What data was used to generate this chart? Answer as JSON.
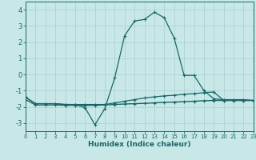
{
  "xlabel": "Humidex (Indice chaleur)",
  "background_color": "#c8e8e8",
  "line_color": "#1a6666",
  "grid_color": "#a8cccc",
  "xlim": [
    0,
    23
  ],
  "ylim": [
    -3.5,
    4.5
  ],
  "xticks": [
    0,
    1,
    2,
    3,
    4,
    5,
    6,
    7,
    8,
    9,
    10,
    11,
    12,
    13,
    14,
    15,
    16,
    17,
    18,
    19,
    20,
    21,
    22,
    23
  ],
  "yticks": [
    -3,
    -2,
    -1,
    0,
    1,
    2,
    3,
    4
  ],
  "line_main_x": [
    0,
    1,
    2,
    3,
    4,
    5,
    6,
    7,
    8,
    9,
    10,
    11,
    12,
    13,
    14,
    15,
    16,
    17,
    18,
    19,
    20,
    21,
    22,
    23
  ],
  "line_main_y": [
    -1.4,
    -1.8,
    -1.8,
    -1.8,
    -1.85,
    -1.85,
    -2.05,
    -3.1,
    -2.1,
    -0.2,
    2.4,
    3.3,
    3.4,
    3.85,
    3.5,
    2.25,
    -0.05,
    -0.05,
    -1.0,
    -1.5,
    -1.55,
    -1.55,
    -1.55,
    -1.6
  ],
  "line_upper_x": [
    0,
    1,
    2,
    3,
    4,
    5,
    6,
    7,
    8,
    9,
    10,
    11,
    12,
    13,
    14,
    15,
    16,
    17,
    18,
    19,
    20,
    21,
    22,
    23
  ],
  "line_upper_y": [
    -1.4,
    -1.8,
    -1.8,
    -1.8,
    -1.85,
    -1.85,
    -1.85,
    -1.85,
    -1.85,
    -1.75,
    -1.65,
    -1.55,
    -1.45,
    -1.38,
    -1.32,
    -1.28,
    -1.22,
    -1.18,
    -1.12,
    -1.08,
    -1.6,
    -1.6,
    -1.6,
    -1.6
  ],
  "line_lower_x": [
    0,
    1,
    2,
    3,
    4,
    5,
    6,
    7,
    8,
    9,
    10,
    11,
    12,
    13,
    14,
    15,
    16,
    17,
    18,
    19,
    20,
    21,
    22,
    23
  ],
  "line_lower_y": [
    -1.55,
    -1.88,
    -1.88,
    -1.88,
    -1.9,
    -1.9,
    -1.9,
    -1.9,
    -1.88,
    -1.85,
    -1.82,
    -1.8,
    -1.78,
    -1.75,
    -1.72,
    -1.7,
    -1.68,
    -1.65,
    -1.62,
    -1.6,
    -1.6,
    -1.6,
    -1.6,
    -1.6
  ]
}
